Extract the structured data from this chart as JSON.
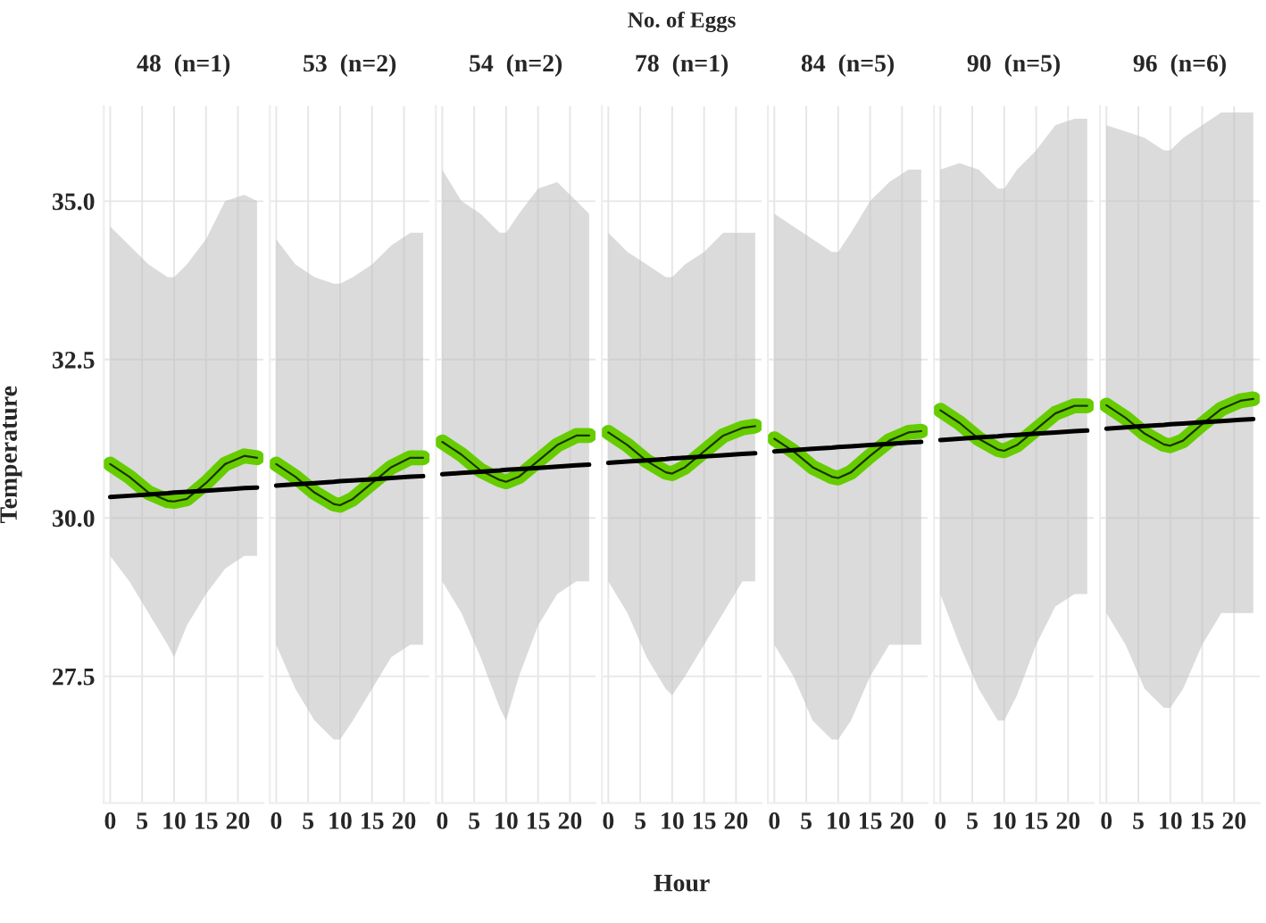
{
  "chart_data": [
    {
      "type": "line",
      "title": "48  (n=1)",
      "ylabel": "Temperature",
      "x": [
        0,
        3,
        6,
        9,
        10,
        12,
        15,
        18,
        21,
        23
      ],
      "xlim": [
        -1,
        24
      ],
      "xticks": [
        0,
        5,
        10,
        15,
        20
      ],
      "ylim": [
        25.5,
        36.5
      ],
      "yticks": [
        {
          "value": 27.5,
          "label": "27.5"
        },
        {
          "value": 30,
          "label": "30.0"
        },
        {
          "value": 32.5,
          "label": "32.5"
        },
        {
          "value": 35,
          "label": "35.0"
        }
      ],
      "grid": true,
      "series": [
        {
          "color": "#66cc00",
          "values": [
            30.85,
            30.65,
            30.4,
            30.27,
            30.26,
            30.3,
            30.55,
            30.85,
            30.98,
            30.95
          ],
          "lower": [
            29.4,
            29,
            28.5,
            28,
            27.8,
            28.3,
            28.8,
            29.2,
            29.4,
            29.4
          ],
          "upper": [
            34.6,
            34.3,
            34,
            33.8,
            33.8,
            34,
            34.4,
            35,
            35.1,
            35
          ]
        },
        {
          "color": "#000000",
          "values": [
            30.33,
            30.35,
            30.37,
            30.39,
            30.4,
            30.41,
            30.43,
            30.45,
            30.47,
            30.48
          ]
        }
      ]
    },
    {
      "type": "line",
      "title": "53  (n=2)",
      "tick_labels": "x",
      "x": [
        0,
        3,
        6,
        9,
        10,
        12,
        15,
        18,
        21,
        23
      ],
      "xlim": [
        -1,
        24
      ],
      "xticks": [
        0,
        5,
        10,
        15,
        20
      ],
      "ylim": [
        25.5,
        36.5
      ],
      "yticks": [
        {
          "value": 27.5,
          "label": null
        },
        {
          "value": 30,
          "label": null
        },
        {
          "value": 32.5,
          "label": null
        },
        {
          "value": 35,
          "label": null
        }
      ],
      "grid": true,
      "series": [
        {
          "color": "#66cc00",
          "values": [
            30.85,
            30.65,
            30.4,
            30.22,
            30.2,
            30.3,
            30.55,
            30.8,
            30.95,
            30.95
          ],
          "lower": [
            28,
            27.3,
            26.8,
            26.5,
            26.5,
            26.8,
            27.3,
            27.8,
            28,
            28
          ],
          "upper": [
            34.4,
            34,
            33.8,
            33.7,
            33.7,
            33.8,
            34,
            34.3,
            34.5,
            34.5
          ]
        },
        {
          "color": "#000000",
          "values": [
            30.51,
            30.53,
            30.55,
            30.57,
            30.58,
            30.59,
            30.61,
            30.63,
            30.65,
            30.66
          ]
        }
      ]
    },
    {
      "type": "line",
      "title": "54  (n=2)",
      "tick_labels": "x",
      "x": [
        0,
        3,
        6,
        9,
        10,
        12,
        15,
        18,
        21,
        23
      ],
      "xlim": [
        -1,
        24
      ],
      "xticks": [
        0,
        5,
        10,
        15,
        20
      ],
      "ylim": [
        25.5,
        36.5
      ],
      "yticks": [
        {
          "value": 27.5,
          "label": null
        },
        {
          "value": 30,
          "label": null
        },
        {
          "value": 32.5,
          "label": null
        },
        {
          "value": 35,
          "label": null
        }
      ],
      "grid": true,
      "series": [
        {
          "color": "#66cc00",
          "values": [
            31.2,
            31.0,
            30.75,
            30.6,
            30.57,
            30.65,
            30.9,
            31.15,
            31.3,
            31.3
          ],
          "lower": [
            29,
            28.5,
            27.8,
            27,
            26.8,
            27.5,
            28.3,
            28.8,
            29,
            29
          ],
          "upper": [
            35.5,
            35,
            34.8,
            34.5,
            34.5,
            34.8,
            35.2,
            35.3,
            35,
            34.8
          ]
        },
        {
          "color": "#000000",
          "values": [
            30.69,
            30.71,
            30.73,
            30.75,
            30.76,
            30.77,
            30.79,
            30.81,
            30.83,
            30.84
          ]
        }
      ]
    },
    {
      "type": "line",
      "title": "78  (n=1)",
      "annotations": [
        "No. of Eggs"
      ],
      "xlabel": "Hour",
      "tick_labels": "x",
      "x": [
        0,
        3,
        6,
        9,
        10,
        12,
        15,
        18,
        21,
        23
      ],
      "xlim": [
        -1,
        24
      ],
      "xticks": [
        0,
        5,
        10,
        15,
        20
      ],
      "ylim": [
        25.5,
        36.5
      ],
      "yticks": [
        {
          "value": 27.5,
          "label": null
        },
        {
          "value": 30,
          "label": null
        },
        {
          "value": 32.5,
          "label": null
        },
        {
          "value": 35,
          "label": null
        }
      ],
      "grid": true,
      "series": [
        {
          "color": "#66cc00",
          "values": [
            31.35,
            31.15,
            30.9,
            30.72,
            30.7,
            30.8,
            31.05,
            31.3,
            31.42,
            31.45
          ],
          "lower": [
            29,
            28.5,
            27.8,
            27.3,
            27.2,
            27.5,
            28,
            28.5,
            29,
            29
          ],
          "upper": [
            34.5,
            34.2,
            34,
            33.8,
            33.8,
            34,
            34.2,
            34.5,
            34.5,
            34.5
          ]
        },
        {
          "color": "#000000",
          "values": [
            30.87,
            30.89,
            30.91,
            30.93,
            30.94,
            30.95,
            30.97,
            30.99,
            31.01,
            31.02
          ]
        }
      ]
    },
    {
      "type": "line",
      "title": "84  (n=5)",
      "tick_labels": "x",
      "x": [
        0,
        3,
        6,
        9,
        10,
        12,
        15,
        18,
        21,
        23
      ],
      "xlim": [
        -1,
        24
      ],
      "xticks": [
        0,
        5,
        10,
        15,
        20
      ],
      "ylim": [
        25.5,
        36.5
      ],
      "yticks": [
        {
          "value": 27.5,
          "label": null
        },
        {
          "value": 30,
          "label": null
        },
        {
          "value": 32.5,
          "label": null
        },
        {
          "value": 35,
          "label": null
        }
      ],
      "grid": true,
      "series": [
        {
          "color": "#66cc00",
          "values": [
            31.25,
            31.05,
            30.8,
            30.65,
            30.63,
            30.72,
            30.98,
            31.22,
            31.35,
            31.37
          ],
          "lower": [
            28,
            27.5,
            26.8,
            26.5,
            26.5,
            26.8,
            27.5,
            28,
            28,
            28
          ],
          "upper": [
            34.8,
            34.6,
            34.4,
            34.2,
            34.2,
            34.5,
            35,
            35.3,
            35.5,
            35.5
          ]
        },
        {
          "color": "#000000",
          "values": [
            31.05,
            31.07,
            31.09,
            31.11,
            31.12,
            31.13,
            31.15,
            31.17,
            31.19,
            31.2
          ]
        }
      ]
    },
    {
      "type": "line",
      "title": "90  (n=5)",
      "tick_labels": "x",
      "x": [
        0,
        3,
        6,
        9,
        10,
        12,
        15,
        18,
        21,
        23
      ],
      "xlim": [
        -1,
        24
      ],
      "xticks": [
        0,
        5,
        10,
        15,
        20
      ],
      "ylim": [
        25.5,
        36.5
      ],
      "yticks": [
        {
          "value": 27.5,
          "label": null
        },
        {
          "value": 30,
          "label": null
        },
        {
          "value": 32.5,
          "label": null
        },
        {
          "value": 35,
          "label": null
        }
      ],
      "grid": true,
      "series": [
        {
          "color": "#66cc00",
          "values": [
            31.7,
            31.5,
            31.25,
            31.08,
            31.06,
            31.15,
            31.4,
            31.65,
            31.77,
            31.77
          ],
          "lower": [
            28.8,
            28,
            27.3,
            26.8,
            26.8,
            27.2,
            28,
            28.6,
            28.8,
            28.8
          ],
          "upper": [
            35.5,
            35.6,
            35.5,
            35.2,
            35.2,
            35.5,
            35.8,
            36.2,
            36.3,
            36.3
          ]
        },
        {
          "color": "#000000",
          "values": [
            31.23,
            31.25,
            31.27,
            31.29,
            31.3,
            31.31,
            31.33,
            31.35,
            31.37,
            31.38
          ]
        }
      ]
    },
    {
      "type": "line",
      "title": "96  (n=6)",
      "tick_labels": "x",
      "x": [
        0,
        3,
        6,
        9,
        10,
        12,
        15,
        18,
        21,
        23
      ],
      "xlim": [
        -1,
        24
      ],
      "xticks": [
        0,
        5,
        10,
        15,
        20
      ],
      "ylim": [
        25.5,
        36.5
      ],
      "yticks": [
        {
          "value": 27.5,
          "label": null
        },
        {
          "value": 30,
          "label": null
        },
        {
          "value": 32.5,
          "label": null
        },
        {
          "value": 35,
          "label": null
        }
      ],
      "grid": true,
      "series": [
        {
          "color": "#66cc00",
          "values": [
            31.78,
            31.58,
            31.33,
            31.16,
            31.14,
            31.22,
            31.48,
            31.72,
            31.85,
            31.88
          ],
          "lower": [
            28.5,
            28,
            27.3,
            27,
            27,
            27.3,
            28,
            28.5,
            28.5,
            28.5
          ],
          "upper": [
            36.2,
            36.1,
            36,
            35.8,
            35.8,
            36,
            36.2,
            36.4,
            36.4,
            36.4
          ]
        },
        {
          "color": "#000000",
          "values": [
            31.41,
            31.43,
            31.45,
            31.47,
            31.48,
            31.49,
            31.51,
            31.53,
            31.55,
            31.56
          ]
        }
      ]
    }
  ]
}
